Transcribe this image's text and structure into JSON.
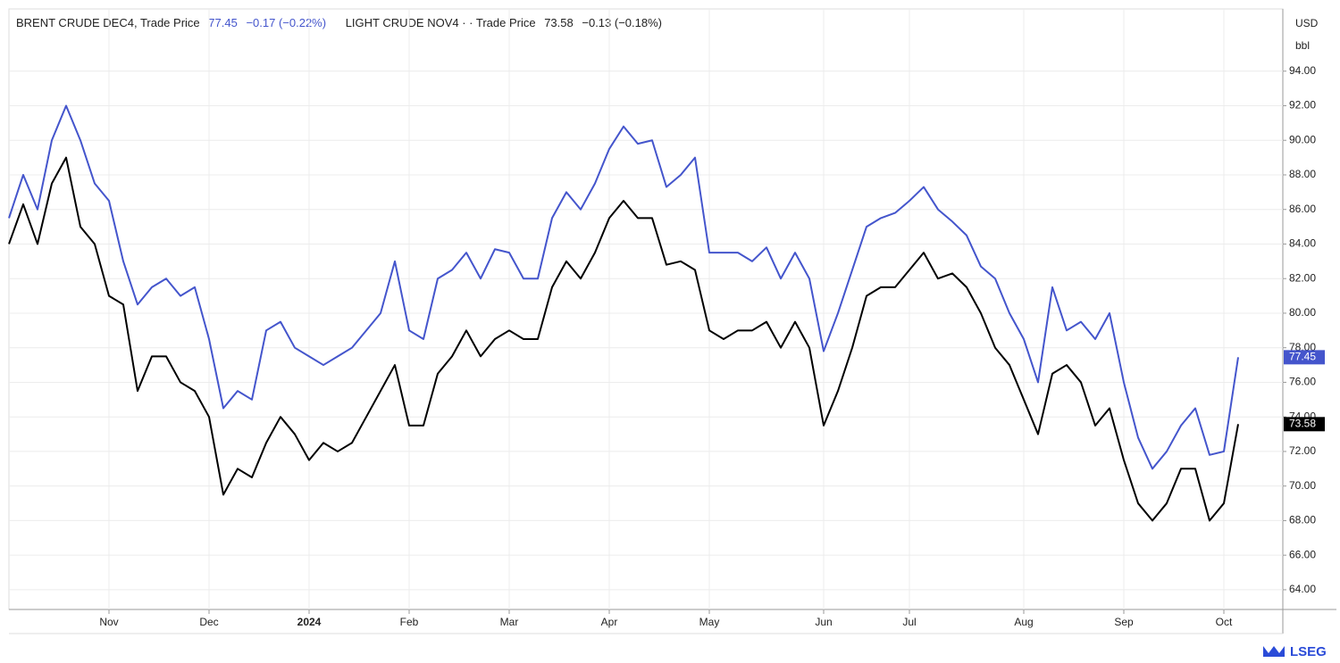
{
  "chart_data": {
    "type": "line",
    "currency": "USD",
    "unit": "bbl",
    "brand": "LSEG",
    "categories": [
      null,
      null,
      null,
      null,
      null,
      null,
      null,
      "Nov",
      null,
      null,
      null,
      null,
      null,
      null,
      "Dec",
      null,
      null,
      null,
      null,
      null,
      null,
      "2024",
      null,
      null,
      null,
      null,
      null,
      null,
      "Feb",
      null,
      null,
      null,
      null,
      null,
      null,
      "Mar",
      null,
      null,
      null,
      null,
      null,
      null,
      "Apr",
      null,
      null,
      null,
      null,
      null,
      null,
      "May",
      null,
      null,
      null,
      null,
      null,
      null,
      null,
      "Jun",
      null,
      null,
      null,
      null,
      null,
      "Jul",
      null,
      null,
      null,
      null,
      null,
      null,
      null,
      "Aug",
      null,
      null,
      null,
      null,
      null,
      null,
      "Sep",
      null,
      null,
      null,
      null,
      null,
      null,
      "Oct",
      null
    ],
    "series": [
      {
        "name": "BRENT CRUDE DEC4, Trade Price",
        "last": 77.45,
        "change": "−0.17 (−0.22%)",
        "color": "#4455cc",
        "values": [
          85.5,
          88,
          86,
          90,
          92,
          90,
          87.5,
          86.5,
          83,
          80.5,
          81.5,
          82,
          81,
          81.5,
          78.5,
          74.5,
          75.5,
          75,
          79,
          79.5,
          78,
          77.5,
          77,
          77.5,
          78,
          79,
          80,
          83,
          79,
          78.5,
          82,
          82.5,
          83.5,
          82,
          83.7,
          83.5,
          82,
          82,
          85.5,
          87,
          86,
          87.5,
          89.5,
          90.8,
          89.8,
          90,
          87.3,
          88,
          89,
          83.5,
          83.5,
          83.5,
          83,
          83.8,
          82,
          83.5,
          82,
          77.8,
          80,
          82.5,
          85,
          85.5,
          85.8,
          86.5,
          87.3,
          86,
          85.3,
          84.5,
          82.7,
          82,
          80,
          78.5,
          76,
          81.5,
          79,
          79.5,
          78.5,
          80,
          76,
          72.8,
          71,
          72,
          73.5,
          74.5,
          71.8,
          72,
          77.45
        ]
      },
      {
        "name": "LIGHT CRUDE NOV4 · · Trade Price",
        "last": 73.58,
        "change": "−0.13 (−0.18%)",
        "color": "#000000",
        "values": [
          84,
          86.3,
          84,
          87.5,
          89,
          85,
          84,
          81,
          80.5,
          75.5,
          77.5,
          77.5,
          76,
          75.5,
          74,
          69.5,
          71,
          70.5,
          72.5,
          74,
          73,
          71.5,
          72.5,
          72,
          72.5,
          74,
          75.5,
          77,
          73.5,
          73.5,
          76.5,
          77.5,
          79,
          77.5,
          78.5,
          79,
          78.5,
          78.5,
          81.5,
          83,
          82,
          83.5,
          85.5,
          86.5,
          85.5,
          85.5,
          82.8,
          83,
          82.5,
          79,
          78.5,
          79,
          79,
          79.5,
          78,
          79.5,
          78,
          73.5,
          75.5,
          78,
          81,
          81.5,
          81.5,
          82.5,
          83.5,
          82,
          82.3,
          81.5,
          80,
          78,
          77,
          75,
          73,
          76.5,
          77,
          76,
          73.5,
          74.5,
          71.5,
          69,
          68,
          69,
          71,
          71,
          68,
          69,
          73.58
        ]
      }
    ],
    "ylim": [
      62.86,
      97.6
    ],
    "yticks": [
      {
        "value": 64,
        "label": "64.00"
      },
      {
        "value": 66,
        "label": "66.00"
      },
      {
        "value": 68,
        "label": "68.00"
      },
      {
        "value": 70,
        "label": "70.00"
      },
      {
        "value": 72,
        "label": "72.00"
      },
      {
        "value": 74,
        "label": "74.00"
      },
      {
        "value": 76,
        "label": "76.00"
      },
      {
        "value": 78,
        "label": "78.00"
      },
      {
        "value": 80,
        "label": "80.00"
      },
      {
        "value": 82,
        "label": "82.00"
      },
      {
        "value": 84,
        "label": "84.00"
      },
      {
        "value": 86,
        "label": "86.00"
      },
      {
        "value": 88,
        "label": "88.00"
      },
      {
        "value": 90,
        "label": "90.00"
      },
      {
        "value": 92,
        "label": "92.00"
      },
      {
        "value": 94,
        "label": "94.00"
      }
    ],
    "grid": true
  }
}
